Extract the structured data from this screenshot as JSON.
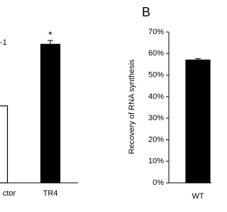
{
  "chart_data": [
    {
      "type": "bar",
      "annotations": [
        "-1",
        "*"
      ],
      "categories": [
        "ctor",
        "TR4"
      ],
      "values": [
        1.0,
        1.8
      ],
      "errors": [
        0,
        0.05
      ],
      "colors": [
        "#ffffff",
        "#000000"
      ],
      "ylim": [
        0,
        2.2
      ]
    },
    {
      "type": "bar",
      "panel": "B",
      "ylabel": "Recovery of RNA synthesis",
      "categories": [
        "WT"
      ],
      "values": [
        57
      ],
      "errors": [
        0.6
      ],
      "colors": [
        "#000000"
      ],
      "ylim": [
        0,
        70
      ],
      "yticks": [
        {
          "value": 0,
          "label": "0%"
        },
        {
          "value": 10,
          "label": "10%"
        },
        {
          "value": 20,
          "label": "20%"
        },
        {
          "value": 30,
          "label": "30%"
        },
        {
          "value": 40,
          "label": "40%"
        },
        {
          "value": 50,
          "label": "50%"
        },
        {
          "value": 60,
          "label": "60%"
        },
        {
          "value": 70,
          "label": "70%"
        }
      ]
    }
  ]
}
